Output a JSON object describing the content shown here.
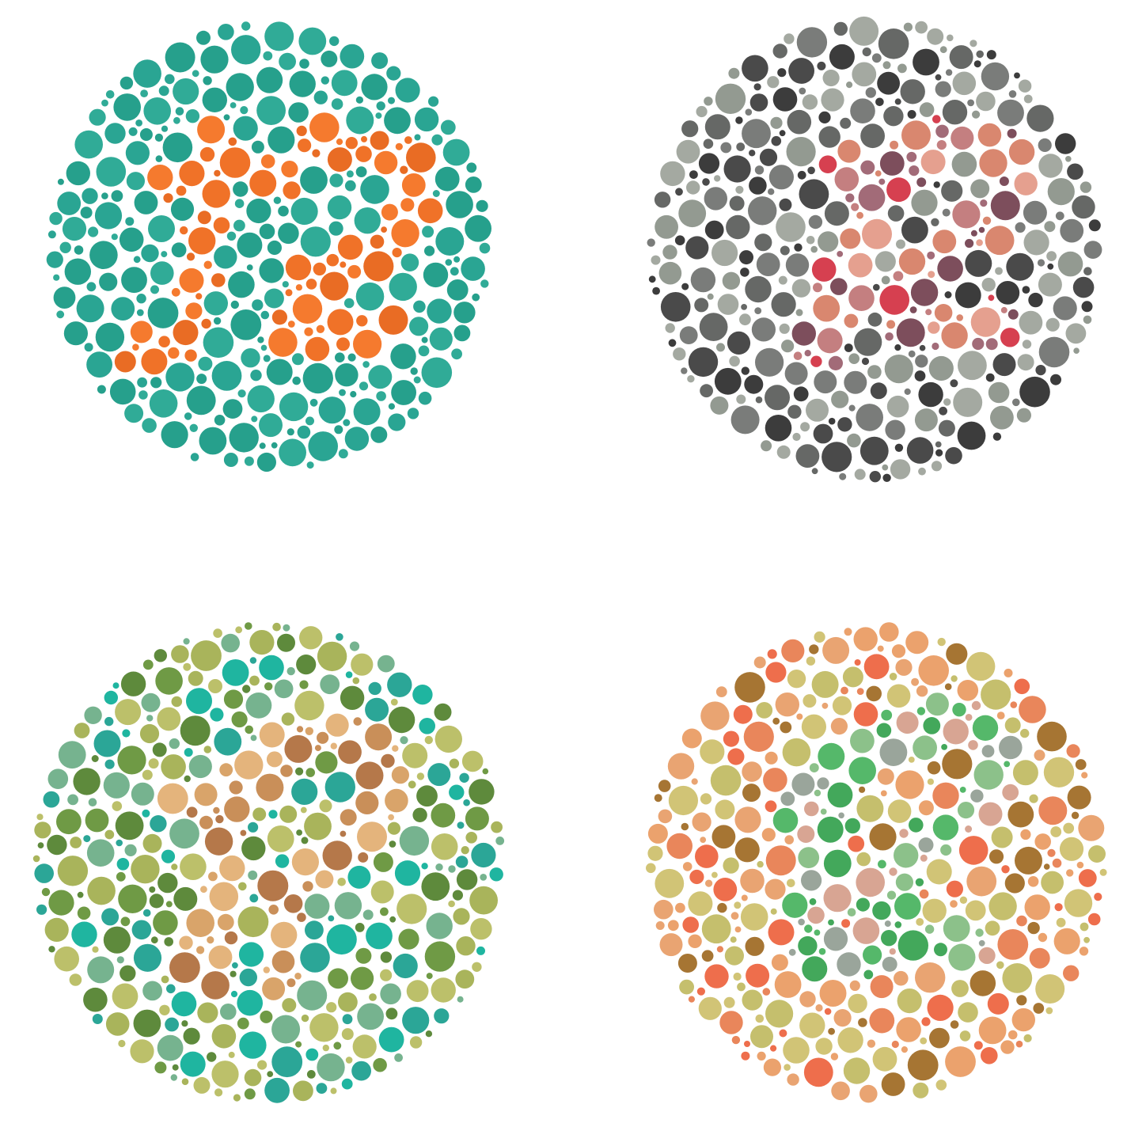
{
  "plates": [
    {
      "id": "plate-a",
      "background_colors": [
        "#2aa593",
        "#30ab97",
        "#26a08c"
      ],
      "figure_colors": [
        "#f07228",
        "#f57a2e",
        "#e96c24"
      ]
    },
    {
      "id": "plate-b",
      "background_colors": [
        "#3c3c3c",
        "#4a4a4a",
        "#7a7c7a",
        "#939a91",
        "#a4a9a1",
        "#666866"
      ],
      "figure_colors": [
        "#d64050",
        "#e5a08f",
        "#d9876f",
        "#7d4e5c",
        "#a26b78",
        "#c47f80"
      ]
    },
    {
      "id": "plate-c",
      "background_colors": [
        "#5e8a3c",
        "#6f9a45",
        "#a9b45b",
        "#bcc06a",
        "#2ba697",
        "#1fb5a0",
        "#76b38f"
      ],
      "figure_colors": [
        "#d9a46a",
        "#c98f59",
        "#b5784a",
        "#e4b47c"
      ]
    },
    {
      "id": "plate-d",
      "background_colors": [
        "#e9a472",
        "#eba26d",
        "#c5bf6d",
        "#d1c476",
        "#e9865b",
        "#a67533",
        "#ee6e4c"
      ],
      "figure_colors": [
        "#55b86a",
        "#43a85b",
        "#9aa59b",
        "#8cc18a",
        "#d8a593"
      ]
    }
  ]
}
